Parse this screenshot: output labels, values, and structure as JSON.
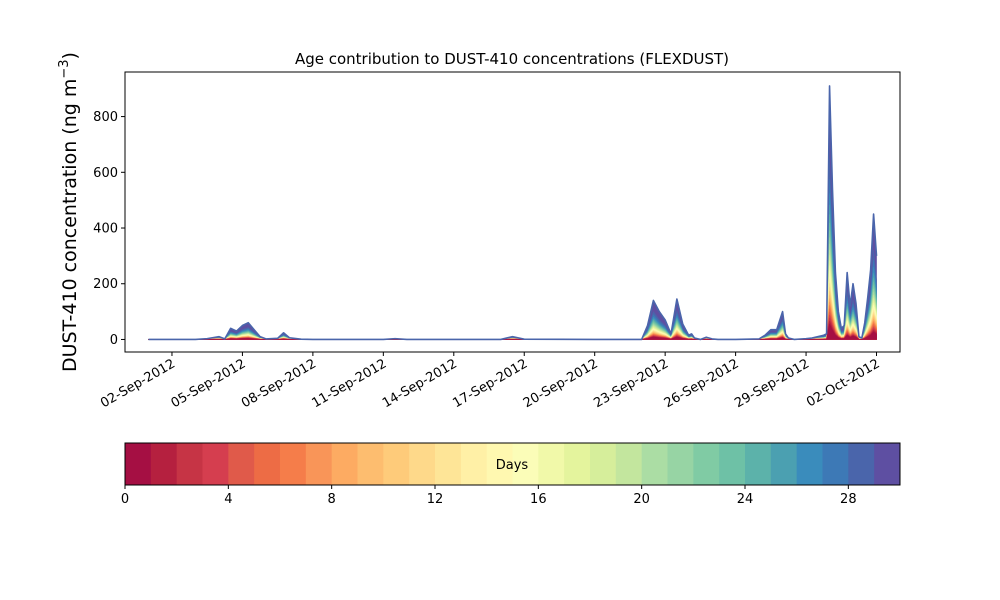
{
  "chart_data": {
    "type": "area",
    "title": "Age contribution to DUST-410 concentrations (FLEXDUST)",
    "ylabel_main": "DUST-410 concentration (ng m",
    "ylabel_sup": "−3",
    "ylabel_close": ")",
    "xlabel": "",
    "xlim": [
      "2012-08-31T00:00",
      "2012-10-03T00:00"
    ],
    "ylim": [
      -45,
      960
    ],
    "yticks": [
      0,
      200,
      400,
      600,
      800
    ],
    "xticks": [
      {
        "date": "2012-09-02",
        "label": "02-Sep-2012"
      },
      {
        "date": "2012-09-05",
        "label": "05-Sep-2012"
      },
      {
        "date": "2012-09-08",
        "label": "08-Sep-2012"
      },
      {
        "date": "2012-09-11",
        "label": "11-Sep-2012"
      },
      {
        "date": "2012-09-14",
        "label": "14-Sep-2012"
      },
      {
        "date": "2012-09-17",
        "label": "17-Sep-2012"
      },
      {
        "date": "2012-09-20",
        "label": "20-Sep-2012"
      },
      {
        "date": "2012-09-23",
        "label": "23-Sep-2012"
      },
      {
        "date": "2012-09-26",
        "label": "26-Sep-2012"
      },
      {
        "date": "2012-09-29",
        "label": "29-Sep-2012"
      },
      {
        "date": "2012-10-02",
        "label": "02-Oct-2012"
      }
    ],
    "x": [
      "2012-09-01T00:00",
      "2012-09-02T00:00",
      "2012-09-03T00:00",
      "2012-09-03T12:00",
      "2012-09-04T00:00",
      "2012-09-04T06:00",
      "2012-09-04T12:00",
      "2012-09-04T18:00",
      "2012-09-05T00:00",
      "2012-09-05T06:00",
      "2012-09-05T12:00",
      "2012-09-05T18:00",
      "2012-09-06T00:00",
      "2012-09-06T12:00",
      "2012-09-06T18:00",
      "2012-09-07T00:00",
      "2012-09-07T12:00",
      "2012-09-08T00:00",
      "2012-09-10T00:00",
      "2012-09-11T00:00",
      "2012-09-11T12:00",
      "2012-09-12T00:00",
      "2012-09-15T00:00",
      "2012-09-16T00:00",
      "2012-09-16T12:00",
      "2012-09-17T00:00",
      "2012-09-20T00:00",
      "2012-09-22T00:00",
      "2012-09-22T06:00",
      "2012-09-22T12:00",
      "2012-09-22T18:00",
      "2012-09-23T00:00",
      "2012-09-23T06:00",
      "2012-09-23T12:00",
      "2012-09-23T18:00",
      "2012-09-24T00:00",
      "2012-09-24T03:00",
      "2012-09-24T06:00",
      "2012-09-24T12:00",
      "2012-09-24T18:00",
      "2012-09-25T00:00",
      "2012-09-25T06:00",
      "2012-09-25T12:00",
      "2012-09-25T18:00",
      "2012-09-26T00:00",
      "2012-09-26T12:00",
      "2012-09-27T00:00",
      "2012-09-27T06:00",
      "2012-09-27T12:00",
      "2012-09-27T18:00",
      "2012-09-28T00:00",
      "2012-09-28T03:00",
      "2012-09-28T06:00",
      "2012-09-28T12:00",
      "2012-09-29T00:00",
      "2012-09-29T06:00",
      "2012-09-29T12:00",
      "2012-09-29T18:00",
      "2012-09-29T21:00",
      "2012-09-30T00:00",
      "2012-09-30T03:00",
      "2012-09-30T06:00",
      "2012-09-30T09:00",
      "2012-09-30T12:00",
      "2012-09-30T15:00",
      "2012-09-30T18:00",
      "2012-09-30T21:00",
      "2012-10-01T00:00",
      "2012-10-01T03:00",
      "2012-10-01T06:00",
      "2012-10-01T09:00",
      "2012-10-01T12:00",
      "2012-10-01T15:00",
      "2012-10-01T18:00",
      "2012-10-01T21:00",
      "2012-10-02T00:00"
    ],
    "series": [
      {
        "values": [
          0,
          0,
          0,
          3,
          10,
          2,
          40,
          30,
          50,
          60,
          35,
          10,
          2,
          4,
          24,
          6,
          1,
          0,
          0,
          0,
          3,
          0,
          0,
          0,
          10,
          1,
          0,
          0,
          50,
          140,
          100,
          70,
          20,
          145,
          55,
          15,
          20,
          5,
          0,
          8,
          2,
          0,
          0,
          0,
          0,
          1,
          2,
          15,
          35,
          35,
          100,
          20,
          5,
          0,
          3,
          5,
          10,
          15,
          20,
          910,
          540,
          240,
          100,
          40,
          50,
          240,
          120,
          200,
          130,
          10,
          5,
          60,
          150,
          250,
          450,
          300
        ]
      }
    ],
    "colorbar": {
      "label": "Days",
      "min": 0,
      "max": 30,
      "ticks": [
        0,
        4,
        8,
        12,
        16,
        20,
        24,
        28
      ],
      "colors": [
        "#a50f43",
        "#b5203f",
        "#c63445",
        "#d53e4f",
        "#e05a4a",
        "#ed6c45",
        "#f57d4a",
        "#f99558",
        "#fdab62",
        "#fdbd6f",
        "#fecb7a",
        "#fed98a",
        "#fee597",
        "#fff0a6",
        "#fff8b0",
        "#fbfdb8",
        "#f1f9a9",
        "#e4f49d",
        "#d6ee9b",
        "#c3e69e",
        "#abdda4",
        "#97d4a4",
        "#80cba4",
        "#6ec1a6",
        "#5cb2aa",
        "#4ba0b1",
        "#3a8cbc",
        "#3d79b6",
        "#4a65ab",
        "#5e4fa2"
      ]
    }
  }
}
